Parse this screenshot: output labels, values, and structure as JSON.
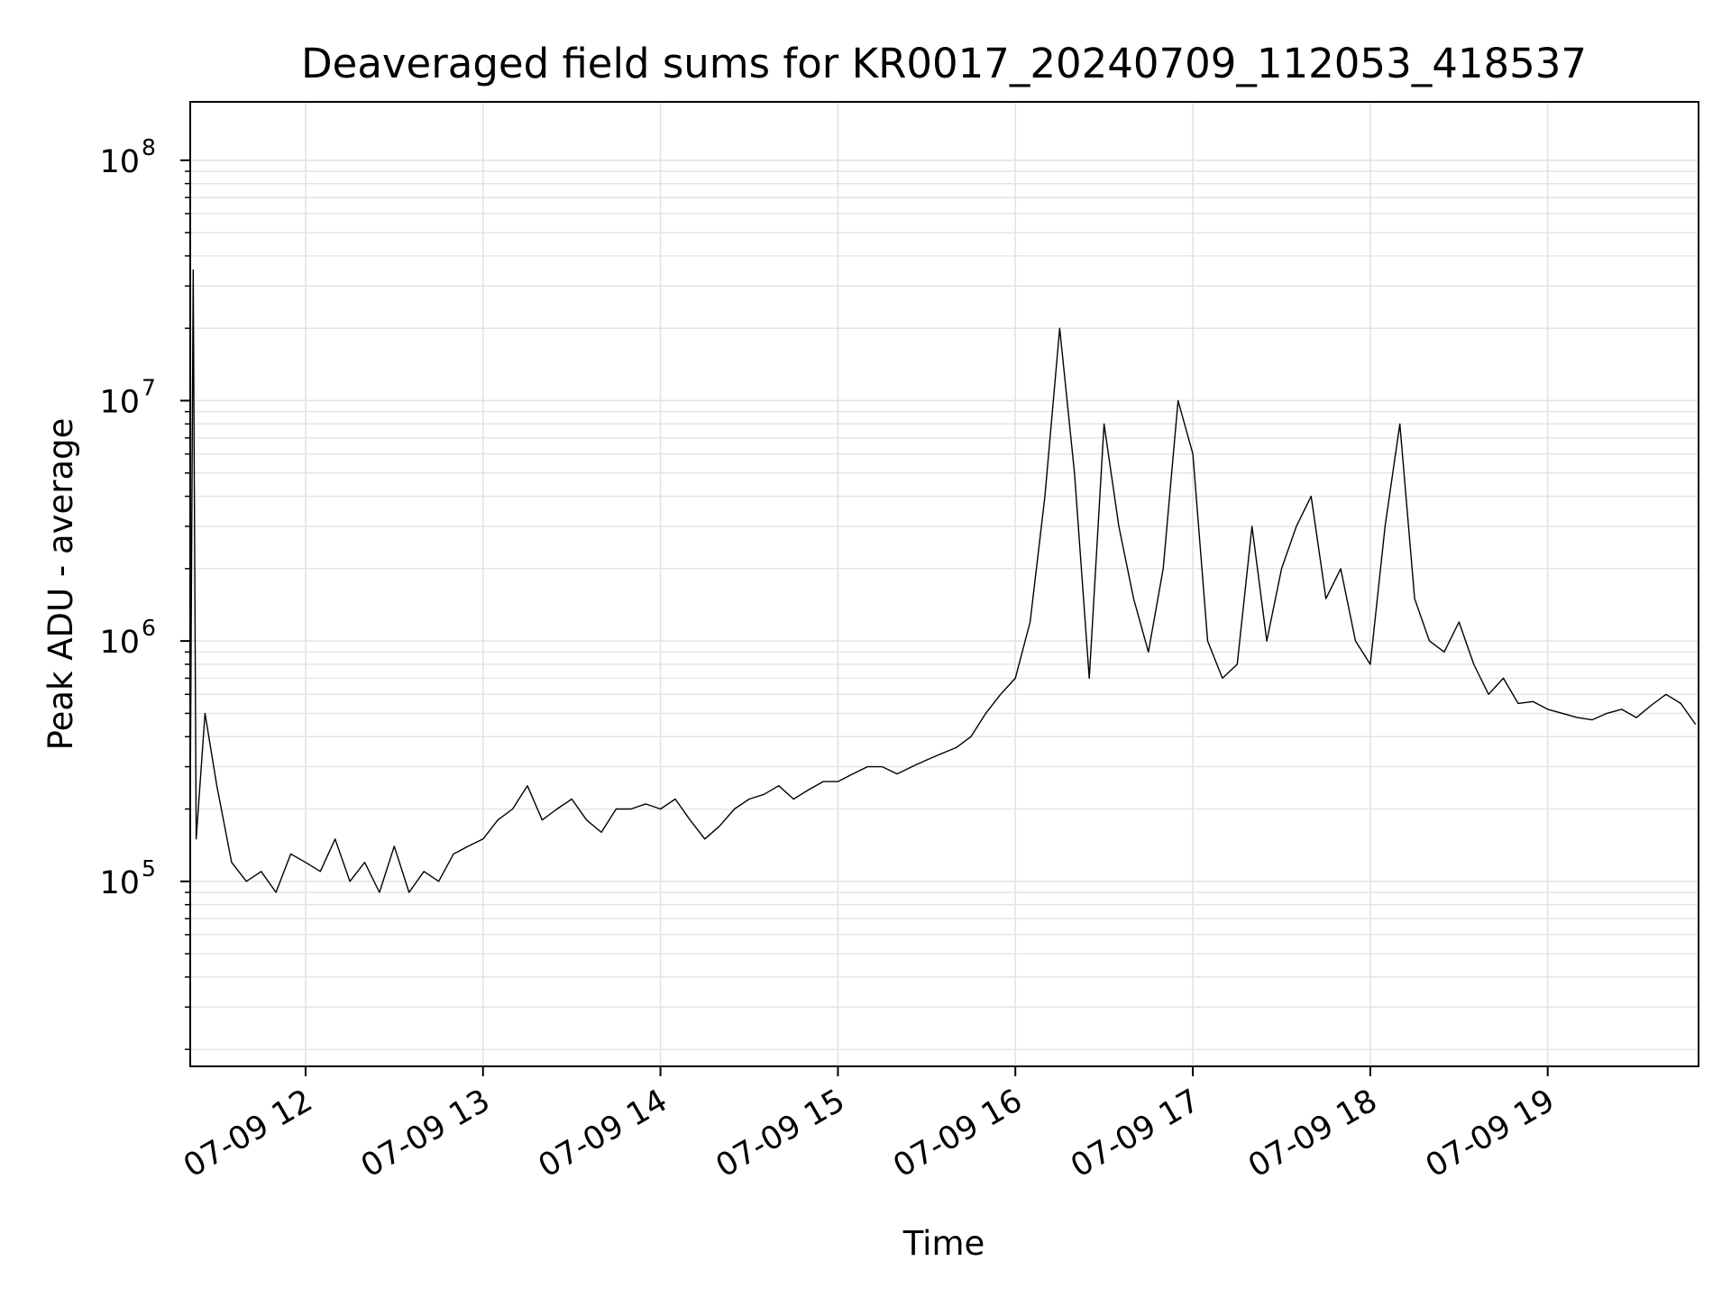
{
  "chart_data": {
    "type": "line",
    "title": "Deaveraged field sums for KR0017_20240709_112053_418537",
    "xlabel": "Time",
    "ylabel": "Peak ADU - average",
    "yscale": "log",
    "ylim": [
      17000,
      175000000
    ],
    "xlim": [
      "2024-07-09T11:21",
      "2024-07-09T19:51"
    ],
    "grid": true,
    "line_color": "#000000",
    "x_ticks": [
      {
        "time": "2024-07-09T12:00",
        "label": "07-09 12"
      },
      {
        "time": "2024-07-09T13:00",
        "label": "07-09 13"
      },
      {
        "time": "2024-07-09T14:00",
        "label": "07-09 14"
      },
      {
        "time": "2024-07-09T15:00",
        "label": "07-09 15"
      },
      {
        "time": "2024-07-09T16:00",
        "label": "07-09 16"
      },
      {
        "time": "2024-07-09T17:00",
        "label": "07-09 17"
      },
      {
        "time": "2024-07-09T18:00",
        "label": "07-09 18"
      },
      {
        "time": "2024-07-09T19:00",
        "label": "07-09 19"
      }
    ],
    "y_ticks": [
      {
        "value": 100000,
        "base": "10",
        "exp": "5"
      },
      {
        "value": 1000000,
        "base": "10",
        "exp": "6"
      },
      {
        "value": 10000000,
        "base": "10",
        "exp": "7"
      },
      {
        "value": 100000000,
        "base": "10",
        "exp": "8"
      }
    ],
    "series": [
      {
        "x": [
          "2024-07-09T11:21",
          "2024-07-09T11:22",
          "2024-07-09T11:23",
          "2024-07-09T11:26",
          "2024-07-09T11:30",
          "2024-07-09T11:35",
          "2024-07-09T11:40",
          "2024-07-09T11:45",
          "2024-07-09T11:50",
          "2024-07-09T11:55",
          "2024-07-09T12:00",
          "2024-07-09T12:05",
          "2024-07-09T12:10",
          "2024-07-09T12:15",
          "2024-07-09T12:20",
          "2024-07-09T12:25",
          "2024-07-09T12:30",
          "2024-07-09T12:35",
          "2024-07-09T12:40",
          "2024-07-09T12:45",
          "2024-07-09T12:50",
          "2024-07-09T12:55",
          "2024-07-09T13:00",
          "2024-07-09T13:05",
          "2024-07-09T13:10",
          "2024-07-09T13:15",
          "2024-07-09T13:20",
          "2024-07-09T13:25",
          "2024-07-09T13:30",
          "2024-07-09T13:35",
          "2024-07-09T13:40",
          "2024-07-09T13:45",
          "2024-07-09T13:50",
          "2024-07-09T13:55",
          "2024-07-09T14:00",
          "2024-07-09T14:05",
          "2024-07-09T14:10",
          "2024-07-09T14:15",
          "2024-07-09T14:20",
          "2024-07-09T14:25",
          "2024-07-09T14:30",
          "2024-07-09T14:35",
          "2024-07-09T14:40",
          "2024-07-09T14:45",
          "2024-07-09T14:50",
          "2024-07-09T14:55",
          "2024-07-09T15:00",
          "2024-07-09T15:05",
          "2024-07-09T15:10",
          "2024-07-09T15:15",
          "2024-07-09T15:20",
          "2024-07-09T15:25",
          "2024-07-09T15:30",
          "2024-07-09T15:35",
          "2024-07-09T15:40",
          "2024-07-09T15:45",
          "2024-07-09T15:50",
          "2024-07-09T15:55",
          "2024-07-09T16:00",
          "2024-07-09T16:05",
          "2024-07-09T16:10",
          "2024-07-09T16:15",
          "2024-07-09T16:20",
          "2024-07-09T16:25",
          "2024-07-09T16:30",
          "2024-07-09T16:35",
          "2024-07-09T16:40",
          "2024-07-09T16:45",
          "2024-07-09T16:50",
          "2024-07-09T16:55",
          "2024-07-09T17:00",
          "2024-07-09T17:05",
          "2024-07-09T17:10",
          "2024-07-09T17:15",
          "2024-07-09T17:20",
          "2024-07-09T17:25",
          "2024-07-09T17:30",
          "2024-07-09T17:35",
          "2024-07-09T17:40",
          "2024-07-09T17:45",
          "2024-07-09T17:50",
          "2024-07-09T17:55",
          "2024-07-09T18:00",
          "2024-07-09T18:05",
          "2024-07-09T18:10",
          "2024-07-09T18:15",
          "2024-07-09T18:20",
          "2024-07-09T18:25",
          "2024-07-09T18:30",
          "2024-07-09T18:35",
          "2024-07-09T18:40",
          "2024-07-09T18:45",
          "2024-07-09T18:50",
          "2024-07-09T18:55",
          "2024-07-09T19:00",
          "2024-07-09T19:05",
          "2024-07-09T19:10",
          "2024-07-09T19:15",
          "2024-07-09T19:20",
          "2024-07-09T19:25",
          "2024-07-09T19:30",
          "2024-07-09T19:35",
          "2024-07-09T19:40",
          "2024-07-09T19:45",
          "2024-07-09T19:50"
        ],
        "y": [
          200000,
          35000000,
          150000,
          500000,
          250000,
          120000,
          100000,
          110000,
          90000,
          130000,
          120000,
          110000,
          150000,
          100000,
          120000,
          90000,
          140000,
          90000,
          110000,
          100000,
          130000,
          140000,
          150000,
          180000,
          200000,
          250000,
          180000,
          200000,
          220000,
          180000,
          160000,
          200000,
          200000,
          210000,
          200000,
          220000,
          180000,
          150000,
          170000,
          200000,
          220000,
          230000,
          250000,
          220000,
          240000,
          260000,
          260000,
          280000,
          300000,
          300000,
          280000,
          300000,
          320000,
          340000,
          360000,
          400000,
          500000,
          600000,
          700000,
          1200000,
          4000000,
          20000000,
          5000000,
          700000,
          8000000,
          3000000,
          1500000,
          900000,
          2000000,
          10000000,
          6000000,
          1000000,
          700000,
          800000,
          3000000,
          1000000,
          2000000,
          3000000,
          4000000,
          1500000,
          2000000,
          1000000,
          800000,
          3000000,
          8000000,
          1500000,
          1000000,
          900000,
          1200000,
          800000,
          600000,
          700000,
          550000,
          560000,
          520000,
          500000,
          480000,
          470000,
          500000,
          520000,
          480000,
          540000,
          600000,
          550000,
          450000
        ]
      }
    ]
  }
}
